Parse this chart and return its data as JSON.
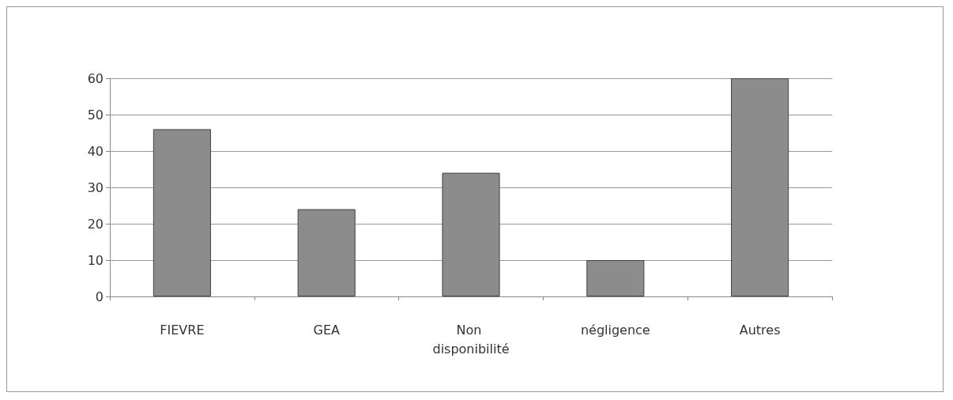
{
  "chart_data": {
    "type": "bar",
    "categories": [
      "FIEVRE",
      "GEA",
      "Non disponibilité",
      "négligence",
      "Autres"
    ],
    "values": [
      46,
      24,
      34,
      10,
      60
    ],
    "color": "#8c8c8c",
    "ylim": [
      0,
      60
    ],
    "yticks": [
      0,
      10,
      20,
      30,
      40,
      50,
      60
    ],
    "grid": "y"
  }
}
